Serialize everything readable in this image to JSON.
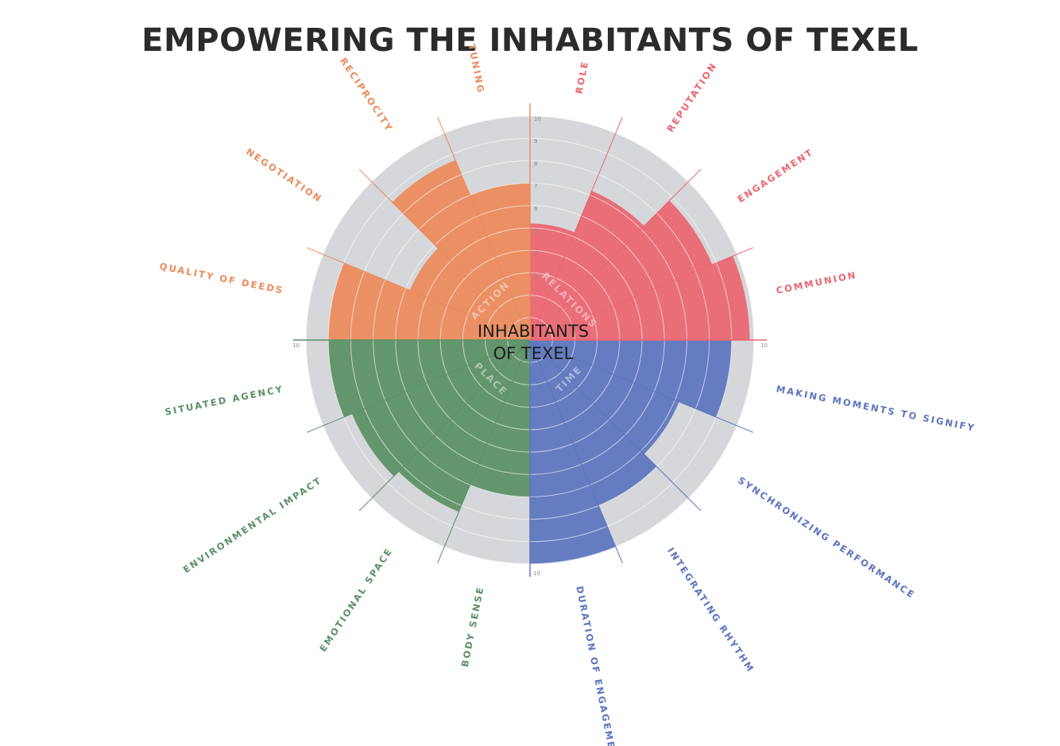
{
  "title": "EMPOWERING THE INHABITANTS OF TEXEL",
  "chart_data": {
    "type": "polar-area",
    "title": "EMPOWERING THE INHABITANTS OF TEXEL",
    "center_label": [
      "INHABITANTS",
      "OF TEXEL"
    ],
    "rlim": [
      0,
      10
    ],
    "scale_ticks": [
      "10",
      "9",
      "8",
      "7",
      "6",
      "5",
      "4",
      "3"
    ],
    "axis_end_label": "10",
    "grid": true,
    "background_color": "#d5d7da",
    "groups": [
      {
        "name": "RELATIONS",
        "color": "#ea6570",
        "categories": [
          "ROLE",
          "REPUTATION",
          "ENGAGEMENT",
          "COMMUNION"
        ],
        "values": [
          5.2,
          7.2,
          8.8,
          9.8
        ]
      },
      {
        "name": "TIME",
        "color": "#5b74bf",
        "categories": [
          "MAKING MOMENTS TO SIGNIFY",
          "SYNCHRONIZING PERFORMANCE",
          "INTEGRATING RHYTHM",
          "DURATION OF ENGAGEMENT"
        ],
        "values": [
          9.0,
          7.2,
          8.0,
          10.0
        ]
      },
      {
        "name": "PLACE",
        "color": "#5a9064",
        "categories": [
          "BODY SENSE",
          "EMOTIONAL SPACE",
          "ENVIRONMENTAL IMPACT",
          "SITUATED AGENCY"
        ],
        "values": [
          7.0,
          8.3,
          8.6,
          9.0
        ]
      },
      {
        "name": "ACTION",
        "color": "#ec8a5a",
        "categories": [
          "QUALITY OF DEEDS",
          "NEGOTIATION",
          "RECIPROCITY",
          "TUNING"
        ],
        "values": [
          9.0,
          5.8,
          8.7,
          7.0
        ]
      }
    ]
  }
}
